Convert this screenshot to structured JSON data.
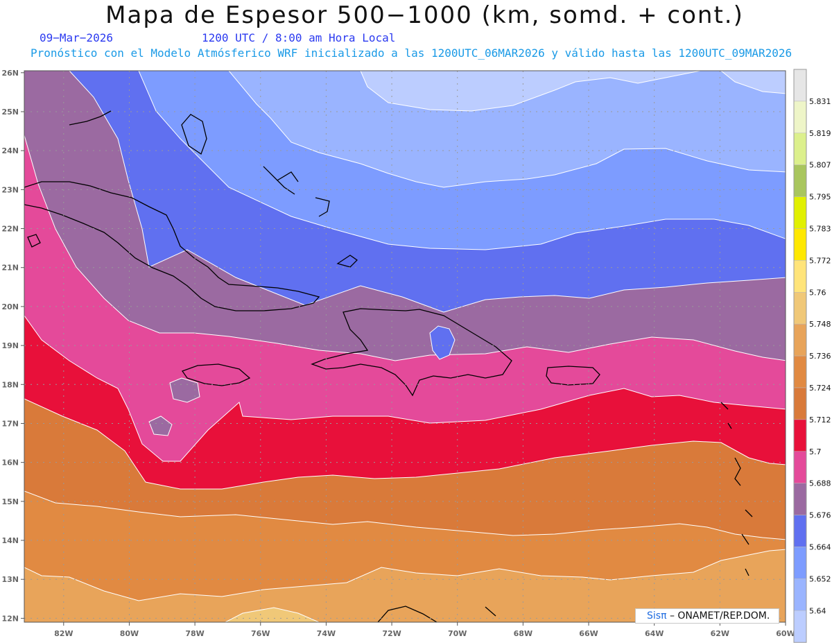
{
  "header": {
    "title": "Mapa de Espesor 500−1000 (km, somd. + cont.)",
    "date": "09−Mar−2026",
    "time": "1200 UTC / 8:00 am Hora Local",
    "forecast_line": "Pronóstico con el Modelo Atmósferico WRF inicializado a las 1200UTC_06MAR2026 y válido hasta las  1200UTC_09MAR2026"
  },
  "colors": {
    "date_text": "#2b3af0",
    "forecast_text": "#1a9ae6",
    "grid": "#9a9a9a",
    "coast": "#000000",
    "contour": "#ffffff",
    "axis_text": "#666666"
  },
  "map": {
    "lon_labels": [
      "82W",
      "80W",
      "78W",
      "76W",
      "74W",
      "72W",
      "70W",
      "68W",
      "66W",
      "64W",
      "62W",
      "60W"
    ],
    "lat_labels": [
      "26N",
      "25N",
      "24N",
      "23N",
      "22N",
      "21N",
      "20N",
      "19N",
      "18N",
      "17N",
      "16N",
      "15N",
      "14N",
      "13N",
      "12N"
    ],
    "lon_range": [
      -83.2,
      -60
    ],
    "lat_range": [
      11.9,
      26.05
    ]
  },
  "legend": {
    "labels": [
      "5.831",
      "5.819",
      "5.807",
      "5.795",
      "5.783",
      "5.772",
      "5.76",
      "5.748",
      "5.736",
      "5.724",
      "5.712",
      "5.7",
      "5.688",
      "5.676",
      "5.664",
      "5.652",
      "5.64"
    ],
    "colors": [
      "#e6e6e6",
      "#eef5c8",
      "#dcf08c",
      "#a9c65e",
      "#e1f000",
      "#ffe800",
      "#ffe47a",
      "#f0c878",
      "#e8a45a",
      "#e18a42",
      "#d97a3a",
      "#e8103a",
      "#e44a9a",
      "#9b6aa1",
      "#6070f0",
      "#7d9cff",
      "#9ab4ff",
      "#bccdff"
    ]
  },
  "attribution": {
    "brand": "Sisπ",
    "rest": " –  ONAMET/REP.DOM."
  }
}
